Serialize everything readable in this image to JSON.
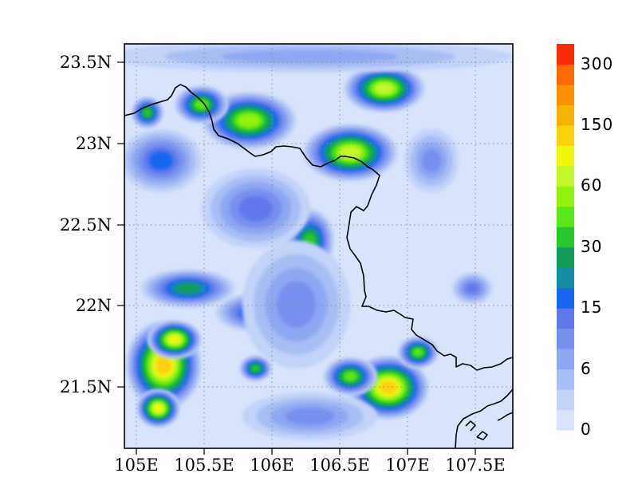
{
  "map": {
    "lat_ticks": [
      "23.5N",
      "23N",
      "22.5N",
      "22N",
      "21.5N"
    ],
    "lon_ticks": [
      "105E",
      "105.5E",
      "106E",
      "106.5E",
      "107E",
      "107.5E"
    ],
    "lon_range": [
      104.93,
      107.8
    ],
    "lat_range": [
      21.1,
      23.63
    ],
    "gridlines": "dotted"
  },
  "colorbar": {
    "colors": [
      "#d9e4fb",
      "#c2d2f8",
      "#a9bdf5",
      "#8ea7f2",
      "#7791ef",
      "#5f79ea",
      "#1766ee",
      "#148ca8",
      "#119c59",
      "#25c82c",
      "#5ae818",
      "#94f20f",
      "#c3f72c",
      "#f1f70a",
      "#fbd20a",
      "#fbb103",
      "#fb9101",
      "#fb6a02",
      "#fb2c03"
    ],
    "labels": [
      "0",
      "6",
      "15",
      "30",
      "60",
      "150",
      "300"
    ]
  },
  "field_blobs": [
    {
      "lon": 105.22,
      "lat": 21.62,
      "rlon": 0.28,
      "rlat": 0.28,
      "v": 140
    },
    {
      "lon": 105.3,
      "lat": 21.78,
      "rlon": 0.2,
      "rlat": 0.12,
      "v": 90
    },
    {
      "lon": 105.18,
      "lat": 21.35,
      "rlon": 0.16,
      "rlat": 0.12,
      "v": 90
    },
    {
      "lon": 106.88,
      "lat": 21.48,
      "rlon": 0.3,
      "rlat": 0.2,
      "v": 100
    },
    {
      "lon": 106.6,
      "lat": 21.55,
      "rlon": 0.2,
      "rlat": 0.12,
      "v": 40
    },
    {
      "lon": 107.1,
      "lat": 21.7,
      "rlon": 0.15,
      "rlat": 0.1,
      "v": 45
    },
    {
      "lon": 106.6,
      "lat": 22.95,
      "rlon": 0.35,
      "rlat": 0.18,
      "v": 70
    },
    {
      "lon": 106.85,
      "lat": 23.35,
      "rlon": 0.3,
      "rlat": 0.15,
      "v": 60
    },
    {
      "lon": 105.85,
      "lat": 23.15,
      "rlon": 0.35,
      "rlat": 0.18,
      "v": 55
    },
    {
      "lon": 105.5,
      "lat": 23.25,
      "rlon": 0.2,
      "rlat": 0.12,
      "v": 40
    },
    {
      "lon": 105.1,
      "lat": 23.2,
      "rlon": 0.12,
      "rlat": 0.1,
      "v": 35
    },
    {
      "lon": 106.3,
      "lat": 22.4,
      "rlon": 0.18,
      "rlat": 0.2,
      "v": 30
    },
    {
      "lon": 105.4,
      "lat": 22.1,
      "rlon": 0.35,
      "rlat": 0.12,
      "v": 25
    },
    {
      "lon": 105.9,
      "lat": 21.95,
      "rlon": 0.3,
      "rlat": 0.12,
      "v": 20
    },
    {
      "lon": 105.9,
      "lat": 21.6,
      "rlon": 0.12,
      "rlat": 0.08,
      "v": 30
    },
    {
      "lon": 105.9,
      "lat": 22.6,
      "rlon": 0.4,
      "rlat": 0.25,
      "v": 12
    },
    {
      "lon": 105.2,
      "lat": 22.9,
      "rlon": 0.3,
      "rlat": 0.2,
      "v": 18
    },
    {
      "lon": 106.2,
      "lat": 22.0,
      "rlon": 0.4,
      "rlat": 0.4,
      "v": 10
    },
    {
      "lon": 106.3,
      "lat": 21.3,
      "rlon": 0.5,
      "rlat": 0.15,
      "v": 9
    },
    {
      "lon": 107.2,
      "lat": 22.9,
      "rlon": 0.2,
      "rlat": 0.2,
      "v": 10
    },
    {
      "lon": 107.5,
      "lat": 22.1,
      "rlon": 0.15,
      "rlat": 0.1,
      "v": 12
    },
    {
      "lon": 106.3,
      "lat": 23.55,
      "rlon": 1.5,
      "rlat": 0.1,
      "v": 8
    }
  ]
}
